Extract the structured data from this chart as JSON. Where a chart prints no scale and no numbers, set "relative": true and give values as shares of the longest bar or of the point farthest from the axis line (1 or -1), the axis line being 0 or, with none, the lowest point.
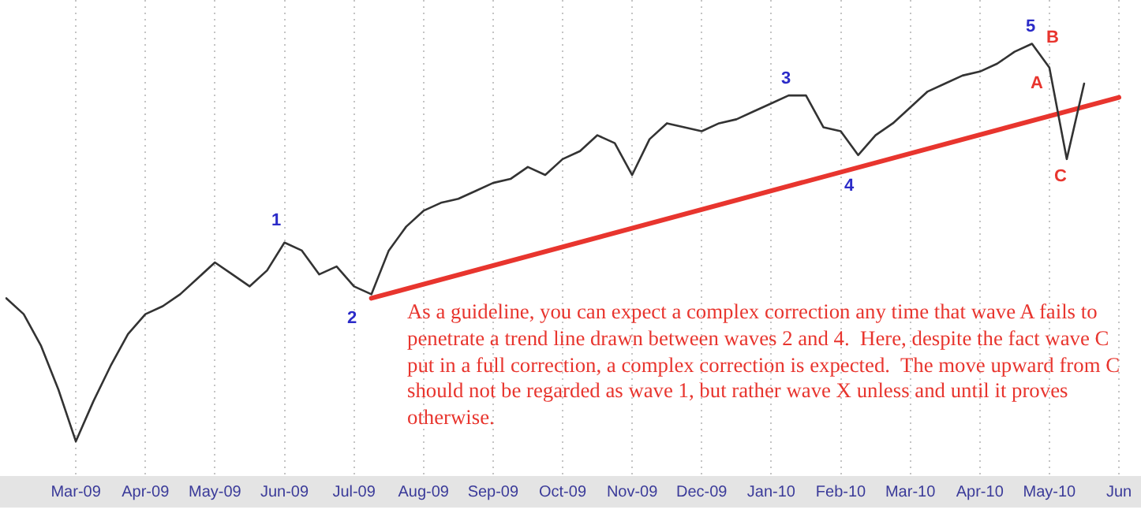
{
  "chart_data": {
    "type": "line",
    "relative": true,
    "grid": "x",
    "categories": [
      null,
      null,
      null,
      null,
      "Mar-09",
      null,
      null,
      null,
      "Apr-09",
      null,
      null,
      null,
      "May-09",
      null,
      null,
      null,
      "Jun-09",
      null,
      null,
      null,
      "Jul-09",
      null,
      null,
      null,
      "Aug-09",
      null,
      null,
      null,
      "Sep-09",
      null,
      null,
      null,
      "Oct-09",
      null,
      null,
      null,
      "Nov-09",
      null,
      null,
      null,
      "Dec-09",
      null,
      null,
      null,
      "Jan-10",
      null,
      null,
      null,
      "Feb-10",
      null,
      null,
      null,
      "Mar-10",
      null,
      null,
      null,
      "Apr-10",
      null,
      null,
      null,
      "May-10",
      null,
      null,
      null,
      "Jun"
    ],
    "series": [
      {
        "color": "#333333",
        "values": [
          0.36,
          0.32,
          0.24,
          0.13,
          0,
          0.1,
          0.19,
          0.27,
          0.32,
          0.34,
          0.37,
          0.41,
          0.45,
          0.42,
          0.39,
          0.43,
          0.5,
          0.48,
          0.42,
          0.44,
          0.39,
          0.37,
          0.48,
          0.54,
          0.58,
          0.6,
          0.61,
          0.63,
          0.65,
          0.66,
          0.69,
          0.67,
          0.71,
          0.73,
          0.77,
          0.75,
          0.67,
          0.76,
          0.8,
          0.79,
          0.78,
          0.8,
          0.81,
          0.83,
          0.85,
          0.87,
          0.87,
          0.79,
          0.78,
          0.72,
          0.77,
          0.8,
          0.84,
          0.88,
          0.9,
          0.92,
          0.93,
          0.95,
          0.98,
          1,
          0.94,
          0.71,
          0.9,
          null,
          null
        ]
      },
      {
        "type": "line",
        "color": "#e8352e",
        "values": [
          null,
          null,
          null,
          null,
          null,
          null,
          null,
          null,
          null,
          null,
          null,
          null,
          null,
          null,
          null,
          null,
          null,
          null,
          null,
          null,
          null,
          0.36,
          null,
          null,
          null,
          null,
          null,
          null,
          null,
          null,
          null,
          null,
          null,
          null,
          null,
          null,
          null,
          null,
          null,
          null,
          null,
          null,
          null,
          null,
          null,
          null,
          null,
          null,
          null,
          null,
          null,
          null,
          null,
          null,
          null,
          null,
          null,
          null,
          null,
          null,
          null,
          null,
          null,
          null,
          0.865
        ]
      }
    ],
    "annotations": [
      "1",
      "2",
      "3",
      "4",
      "5",
      "A",
      "B",
      "C",
      "As a guideline, you can expect a complex correction any time that wave A fails to penetrate a trend line drawn between waves 2 and 4.  Here, despite the fact wave C put in a full correction, a complex correction is expected.  The move upward from C should not be regarded as wave 1, but rather wave X unless and until it proves otherwise."
    ]
  }
}
